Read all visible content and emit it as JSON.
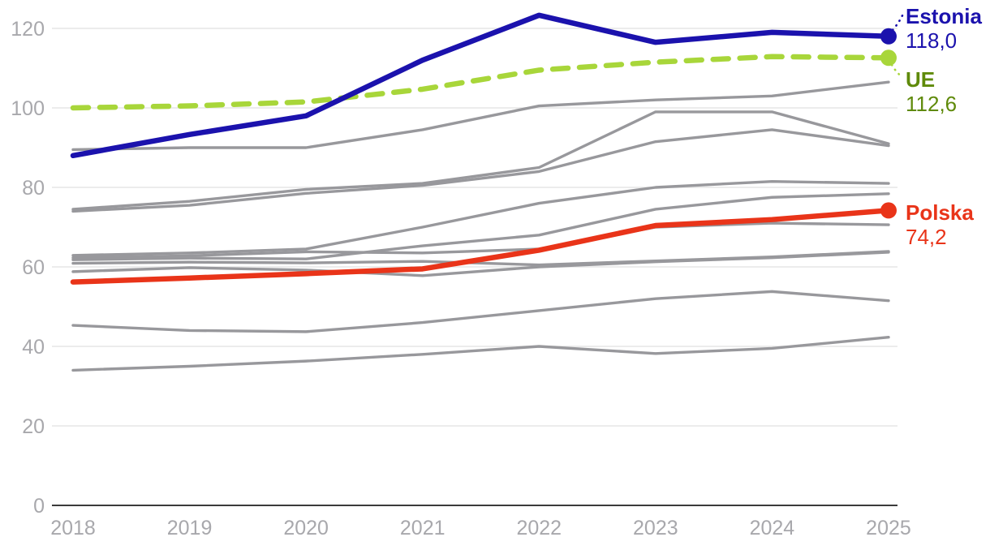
{
  "chart_data": {
    "type": "line",
    "x_labels": [
      "2018",
      "2019",
      "2020",
      "2021",
      "2022",
      "2023",
      "2024",
      "2025"
    ],
    "y_ticks": [
      0,
      20,
      40,
      60,
      80,
      100,
      120
    ],
    "ylim": [
      0,
      127
    ],
    "grid": "horizontal",
    "legend_position": "right-end-labels",
    "colors": {
      "estonia": "#1b12ad",
      "ue_line": "#a8d63a",
      "ue_text": "#5f8a0a",
      "polska": "#e93419",
      "background_series": "#98989c",
      "gridline": "#ececec",
      "axis": "#3b3b3b",
      "tick_text": "#a8a8ac"
    },
    "series": [
      {
        "name": "country-1",
        "role": "background",
        "color": "#98989c",
        "dash": "solid",
        "width": 3.4,
        "end_dot": false,
        "values": [
          89.5,
          90.0,
          90.0,
          94.5,
          100.5,
          102.0,
          103.0,
          106.5
        ]
      },
      {
        "name": "country-2",
        "role": "background",
        "color": "#98989c",
        "dash": "solid",
        "width": 3.4,
        "end_dot": false,
        "values": [
          74.5,
          76.5,
          79.5,
          81.0,
          85.0,
          99.0,
          99.0,
          91.0
        ]
      },
      {
        "name": "country-3",
        "role": "background",
        "color": "#98989c",
        "dash": "solid",
        "width": 3.4,
        "end_dot": false,
        "values": [
          74.0,
          75.5,
          78.5,
          80.5,
          84.0,
          91.5,
          94.5,
          90.5
        ]
      },
      {
        "name": "country-4",
        "role": "background",
        "color": "#98989c",
        "dash": "solid",
        "width": 3.4,
        "end_dot": false,
        "values": [
          62.9,
          63.5,
          64.5,
          70.0,
          76.0,
          80.0,
          81.5,
          81.0
        ]
      },
      {
        "name": "country-5",
        "role": "background",
        "color": "#98989c",
        "dash": "solid",
        "width": 3.4,
        "end_dot": false,
        "values": [
          61.8,
          62.2,
          62.0,
          65.3,
          68.0,
          74.5,
          77.5,
          78.4
        ]
      },
      {
        "name": "country-6",
        "role": "background",
        "color": "#98989c",
        "dash": "solid",
        "width": 3.4,
        "end_dot": false,
        "values": [
          62.3,
          62.8,
          63.8,
          63.5,
          64.5,
          70.0,
          71.0,
          70.6
        ]
      },
      {
        "name": "country-7",
        "role": "background",
        "color": "#98989c",
        "dash": "solid",
        "width": 3.4,
        "end_dot": false,
        "values": [
          60.9,
          61.2,
          61.0,
          61.4,
          60.5,
          61.5,
          62.5,
          63.9
        ]
      },
      {
        "name": "country-8",
        "role": "background",
        "color": "#98989c",
        "dash": "solid",
        "width": 3.4,
        "end_dot": false,
        "values": [
          58.8,
          59.8,
          59.2,
          57.8,
          60.0,
          61.3,
          62.3,
          63.7
        ]
      },
      {
        "name": "country-9",
        "role": "background",
        "color": "#98989c",
        "dash": "solid",
        "width": 3.4,
        "end_dot": false,
        "values": [
          45.3,
          44.0,
          43.7,
          46.0,
          49.0,
          52.0,
          53.8,
          51.5
        ]
      },
      {
        "name": "country-10",
        "role": "background",
        "color": "#98989c",
        "dash": "solid",
        "width": 3.4,
        "end_dot": false,
        "values": [
          34.0,
          35.0,
          36.3,
          38.0,
          40.0,
          38.2,
          39.5,
          42.3
        ]
      },
      {
        "name": "UE",
        "role": "highlight",
        "color": "#a8d63a",
        "dash": "dashed",
        "width": 6.5,
        "end_dot": true,
        "values": [
          100.0,
          100.5,
          101.5,
          104.7,
          109.5,
          111.5,
          112.9,
          112.6
        ]
      },
      {
        "name": "Estonia",
        "role": "highlight",
        "color": "#1b12ad",
        "dash": "solid",
        "width": 6.5,
        "end_dot": true,
        "values": [
          88.0,
          93.3,
          98.0,
          112.0,
          123.3,
          116.5,
          119.0,
          118.0
        ]
      },
      {
        "name": "Polska",
        "role": "highlight",
        "color": "#e93419",
        "dash": "solid",
        "width": 6.5,
        "end_dot": true,
        "values": [
          56.2,
          57.2,
          58.3,
          59.5,
          64.2,
          70.4,
          71.9,
          74.2
        ]
      }
    ],
    "annotations": [
      {
        "series": "Estonia",
        "label": "Estonia",
        "value_label": "118,0"
      },
      {
        "series": "UE",
        "label": "UE",
        "value_label": "112,6"
      },
      {
        "series": "Polska",
        "label": "Polska",
        "value_label": "74,2"
      }
    ]
  }
}
